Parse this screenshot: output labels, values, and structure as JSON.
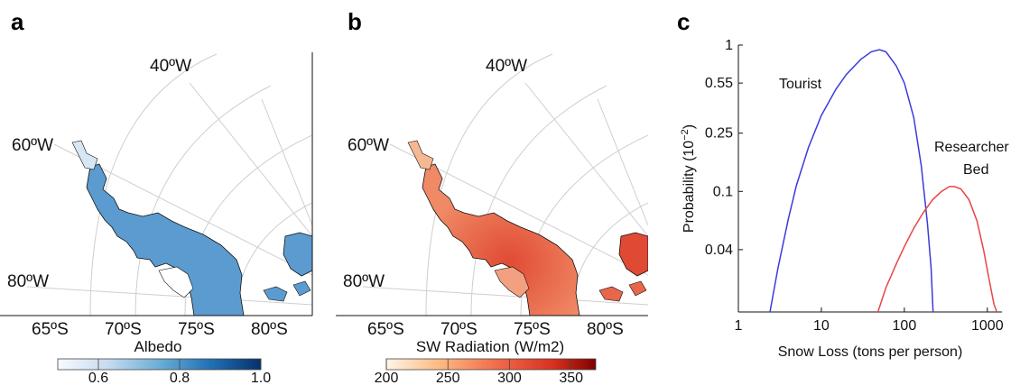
{
  "panels": {
    "a": {
      "label": "a",
      "lon_labels": [
        "40ºW",
        "60ºW",
        "80ºW"
      ],
      "lat_labels": [
        "65ºS",
        "70ºS",
        "75ºS",
        "80ºS"
      ],
      "colorbar": {
        "title": "Albedo",
        "ticks": [
          "0.6",
          "0.8",
          "1.0"
        ],
        "range": [
          0.5,
          1.0
        ],
        "colors": [
          "#f7fbff",
          "#c6dbef",
          "#6baed6",
          "#2171b5",
          "#08306b"
        ]
      },
      "fill_color": "#5b9bd0"
    },
    "b": {
      "label": "b",
      "lon_labels": [
        "40ºW",
        "60ºW",
        "80ºW"
      ],
      "lat_labels": [
        "65ºS",
        "70ºS",
        "75ºS",
        "80ºS"
      ],
      "colorbar": {
        "title": "SW Radiation (W/m2)",
        "ticks": [
          "200",
          "250",
          "300",
          "350"
        ],
        "range": [
          200,
          370
        ],
        "colors": [
          "#fff5e6",
          "#fdbb84",
          "#ef6548",
          "#d7301f",
          "#7f0000"
        ]
      },
      "fill_color": "#e8664a"
    },
    "c": {
      "label": "c"
    }
  },
  "chart_data": {
    "type": "line",
    "xlabel": "Snow Loss (tons per person)",
    "ylabel": "Probability (10",
    "ylabel_sup": "−2",
    "ylabel_close": ")",
    "xscale": "log",
    "yscale": "log",
    "xlim": [
      1,
      1500
    ],
    "ylim": [
      0.015,
      1.0
    ],
    "x_ticks": [
      1,
      10,
      100,
      1000
    ],
    "x_tick_labels": [
      "1",
      "10",
      "100",
      "1000"
    ],
    "y_ticks": [
      0.04,
      0.1,
      0.25,
      0.55,
      1
    ],
    "y_tick_labels": [
      "0.04",
      "0.1",
      "0.25",
      "0.55",
      "1"
    ],
    "series": [
      {
        "name": "Tourist",
        "color": "#3b3bdc",
        "x": [
          2.4,
          3,
          4,
          5,
          7,
          10,
          15,
          20,
          30,
          40,
          50,
          60,
          80,
          100,
          130,
          160,
          190,
          210,
          222
        ],
        "y": [
          0.015,
          0.03,
          0.065,
          0.11,
          0.2,
          0.33,
          0.5,
          0.63,
          0.8,
          0.9,
          0.93,
          0.9,
          0.72,
          0.55,
          0.32,
          0.15,
          0.06,
          0.03,
          0.015
        ]
      },
      {
        "name": "Researcher Bed",
        "name_lines": [
          "Researcher",
          "Bed"
        ],
        "color": "#e84545",
        "x": [
          48,
          60,
          80,
          100,
          130,
          170,
          220,
          280,
          350,
          400,
          480,
          600,
          750,
          900,
          1050,
          1200,
          1300
        ],
        "y": [
          0.015,
          0.022,
          0.032,
          0.042,
          0.056,
          0.072,
          0.088,
          0.1,
          0.108,
          0.108,
          0.104,
          0.088,
          0.063,
          0.04,
          0.025,
          0.017,
          0.015
        ]
      }
    ]
  }
}
